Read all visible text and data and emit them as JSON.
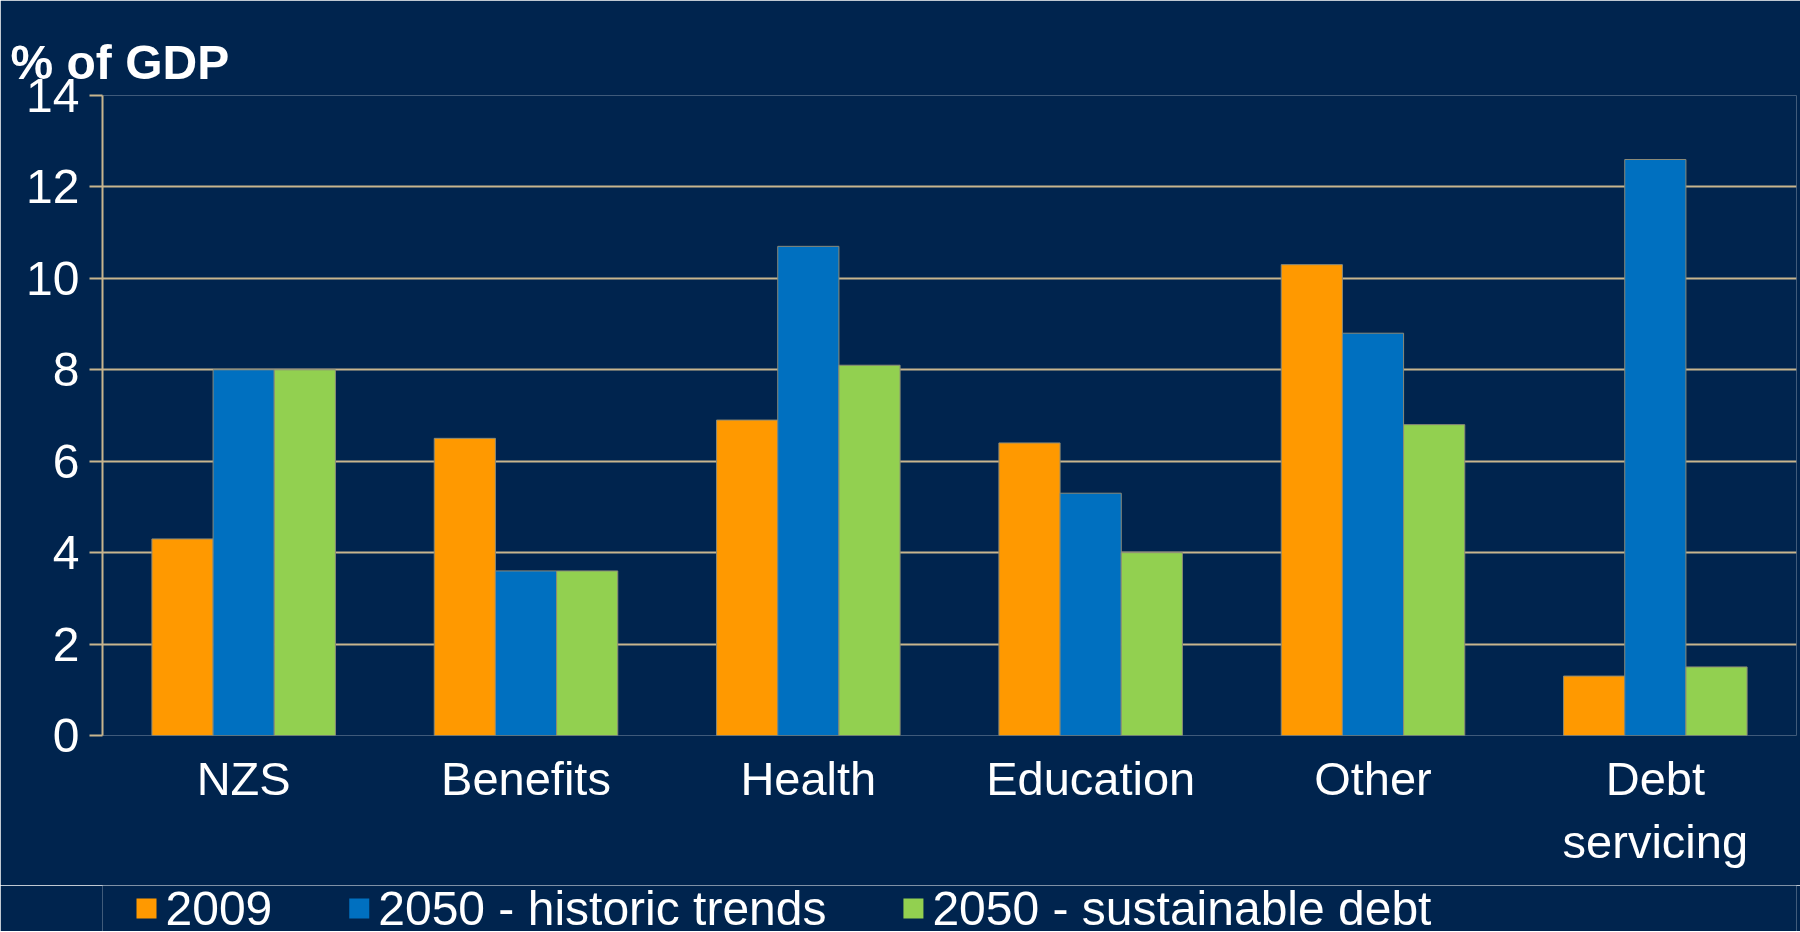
{
  "chart_data": {
    "type": "bar",
    "ylabel": "% of GDP",
    "categories": [
      "NZS",
      "Benefits",
      "Health",
      "Education",
      "Other",
      "Debt servicing"
    ],
    "series": [
      {
        "name": "2009",
        "color": "#ff9900",
        "values": [
          4.3,
          6.5,
          6.9,
          6.4,
          10.3,
          1.3
        ]
      },
      {
        "name": "2050 - historic trends",
        "color": "#0070c0",
        "values": [
          8.0,
          3.6,
          10.7,
          5.3,
          8.8,
          12.6
        ]
      },
      {
        "name": "2050 - sustainable debt",
        "color": "#92d050",
        "values": [
          8.0,
          3.6,
          8.1,
          4.0,
          6.8,
          1.5
        ]
      }
    ],
    "ylim": [
      0,
      14
    ],
    "yticks": [
      0,
      2,
      4,
      6,
      8,
      10,
      12,
      14
    ],
    "grid": "y",
    "legend": "bottom"
  }
}
